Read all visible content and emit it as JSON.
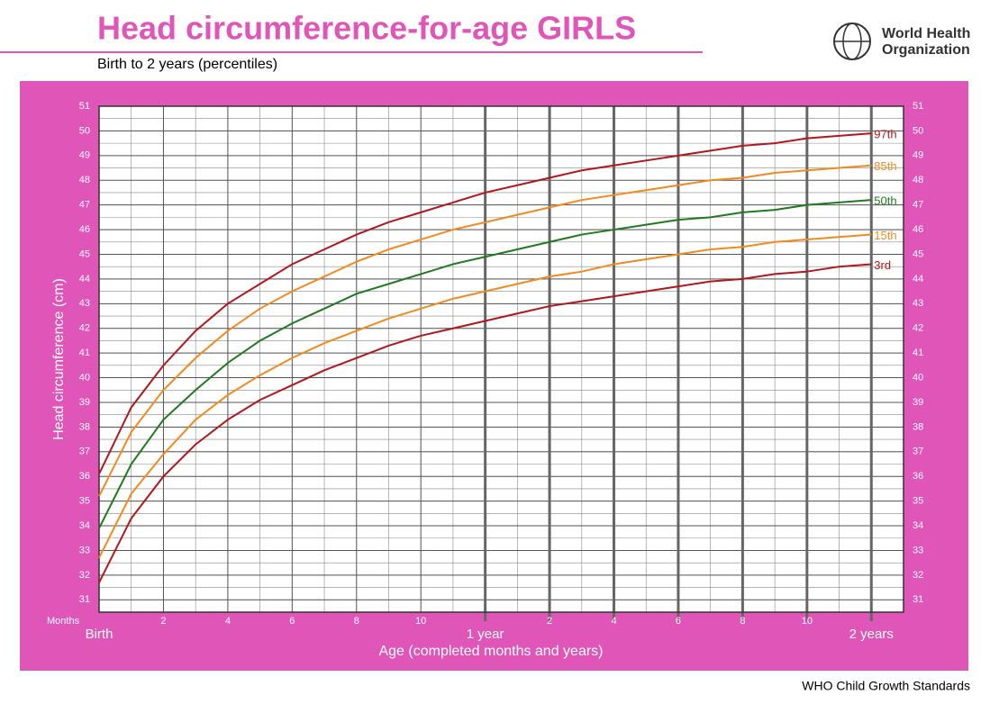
{
  "header": {
    "title": "Head circumference-for-age  GIRLS",
    "subtitle": "Birth to 2 years (percentiles)",
    "logo_text": [
      "World Health",
      "Organization"
    ]
  },
  "footer": "WHO Child Growth Standards",
  "chart_data": {
    "type": "line",
    "y_label": "Head circumference (cm)",
    "x_label": "Age (completed months and years)",
    "x_unit_label": "Months",
    "x": [
      0,
      1,
      2,
      3,
      4,
      5,
      6,
      7,
      8,
      9,
      10,
      11,
      12,
      13,
      14,
      15,
      16,
      17,
      18,
      19,
      20,
      21,
      22,
      23,
      24
    ],
    "xlim": [
      0,
      25
    ],
    "xticks": [
      {
        "value": 0,
        "label": "Birth"
      },
      2,
      4,
      6,
      8,
      10,
      {
        "value": 12,
        "label": "1 year"
      },
      {
        "value": 14,
        "label": "2"
      },
      {
        "value": 16,
        "label": "4"
      },
      {
        "value": 18,
        "label": "6"
      },
      {
        "value": 20,
        "label": "8"
      },
      {
        "value": 22,
        "label": "10"
      },
      {
        "value": 24,
        "label": "2 years"
      }
    ],
    "ylim": [
      30.5,
      51
    ],
    "yticks": [
      31,
      32,
      33,
      34,
      35,
      36,
      37,
      38,
      39,
      40,
      41,
      42,
      43,
      44,
      45,
      46,
      47,
      48,
      49,
      50,
      51
    ],
    "grid": true,
    "series": [
      {
        "name": "97th",
        "color": "#b3161b",
        "values": [
          36.1,
          38.8,
          40.5,
          41.9,
          43.0,
          43.8,
          44.6,
          45.2,
          45.8,
          46.3,
          46.7,
          47.1,
          47.5,
          47.8,
          48.1,
          48.4,
          48.6,
          48.8,
          49.0,
          49.2,
          49.4,
          49.5,
          49.7,
          49.8,
          49.9
        ]
      },
      {
        "name": "85th",
        "color": "#f28a1e",
        "values": [
          35.2,
          37.8,
          39.5,
          40.8,
          41.9,
          42.8,
          43.5,
          44.1,
          44.7,
          45.2,
          45.6,
          46.0,
          46.3,
          46.6,
          46.9,
          47.2,
          47.4,
          47.6,
          47.8,
          48.0,
          48.1,
          48.3,
          48.4,
          48.5,
          48.6
        ]
      },
      {
        "name": "50th",
        "color": "#1f7a1f",
        "values": [
          33.9,
          36.5,
          38.3,
          39.5,
          40.6,
          41.5,
          42.2,
          42.8,
          43.4,
          43.8,
          44.2,
          44.6,
          44.9,
          45.2,
          45.5,
          45.8,
          46.0,
          46.2,
          46.4,
          46.5,
          46.7,
          46.8,
          47.0,
          47.1,
          47.2
        ]
      },
      {
        "name": "15th",
        "color": "#f28a1e",
        "values": [
          32.7,
          35.3,
          36.9,
          38.3,
          39.3,
          40.1,
          40.8,
          41.4,
          41.9,
          42.4,
          42.8,
          43.2,
          43.5,
          43.8,
          44.1,
          44.3,
          44.6,
          44.8,
          45.0,
          45.2,
          45.3,
          45.5,
          45.6,
          45.7,
          45.8
        ]
      },
      {
        "name": "3rd",
        "color": "#b3161b",
        "values": [
          31.7,
          34.3,
          36.0,
          37.3,
          38.3,
          39.1,
          39.7,
          40.3,
          40.8,
          41.3,
          41.7,
          42.0,
          42.3,
          42.6,
          42.9,
          43.1,
          43.3,
          43.5,
          43.7,
          43.9,
          44.0,
          44.2,
          44.3,
          44.5,
          44.6
        ]
      }
    ]
  }
}
